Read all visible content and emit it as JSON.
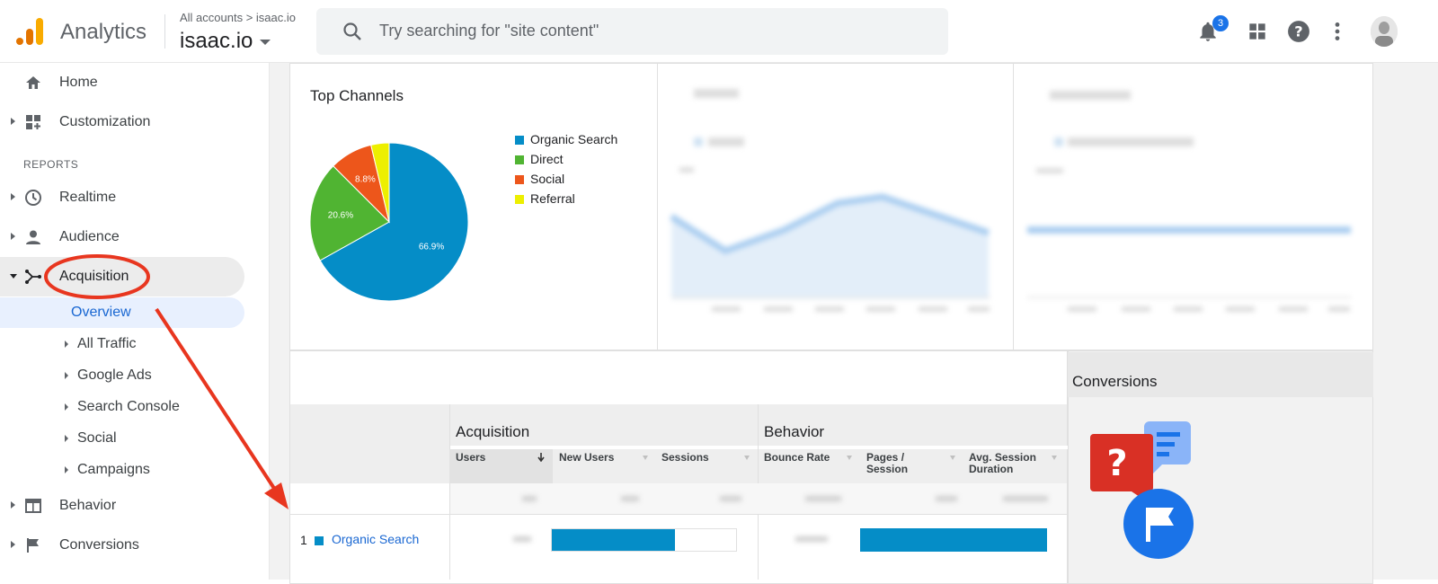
{
  "header": {
    "app_name": "Analytics",
    "breadcrumb": "All accounts > isaac.io",
    "account": "isaac.io",
    "search_placeholder": "Try searching for \"site content\"",
    "notification_count": "3"
  },
  "sidebar": {
    "home": "Home",
    "customization": "Customization",
    "reports_label": "REPORTS",
    "realtime": "Realtime",
    "audience": "Audience",
    "acquisition": "Acquisition",
    "overview": "Overview",
    "sub_items": [
      "All Traffic",
      "Google Ads",
      "Search Console",
      "Social",
      "Campaigns"
    ],
    "behavior": "Behavior",
    "conversions": "Conversions"
  },
  "top_channels": {
    "title": "Top Channels",
    "chart_data": {
      "type": "pie",
      "categories": [
        "Organic Search",
        "Direct",
        "Social",
        "Referral"
      ],
      "values": [
        66.9,
        20.6,
        8.8,
        3.7
      ],
      "labels": [
        "66.9%",
        "20.6%",
        "8.8%",
        ""
      ],
      "colors": [
        "#058dc7",
        "#50b432",
        "#ed561b",
        "#edef00"
      ],
      "legend_placement": "right"
    }
  },
  "table": {
    "group_acquisition": "Acquisition",
    "group_behavior": "Behavior",
    "columns": [
      "Users",
      "New Users",
      "Sessions",
      "Bounce Rate",
      "Pages / Session",
      "Avg. Session Duration"
    ],
    "row": {
      "rank": "1",
      "channel": "Organic Search",
      "new_users_bar": 0.67,
      "pages_bar": 1.0
    }
  },
  "conversions_title": "Conversions",
  "colors": {
    "accent": "#1967d2",
    "bar": "#058dc7",
    "annotation": "#e8361f"
  }
}
